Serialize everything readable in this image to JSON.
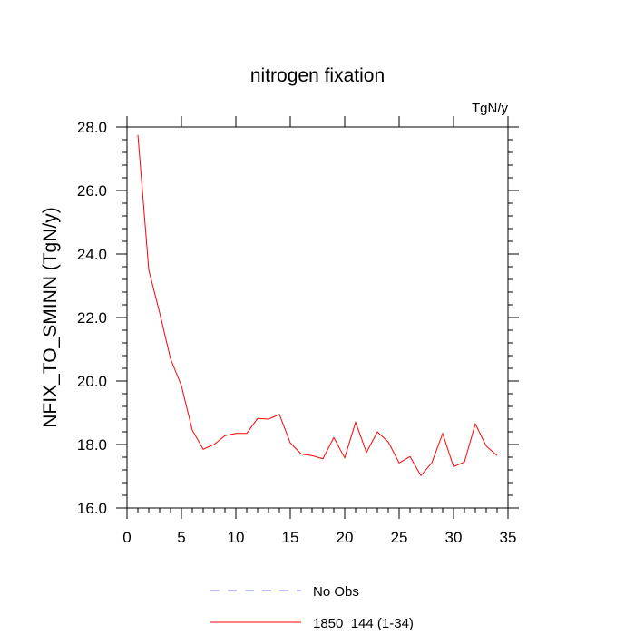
{
  "chart_data": {
    "type": "line",
    "title": "nitrogen fixation",
    "units_label": "TgN/y",
    "xlabel": "",
    "ylabel": "NFIX_TO_SMINN  (TgN/y)",
    "xlim": [
      0,
      35
    ],
    "ylim": [
      16,
      28
    ],
    "xticks": [
      0,
      5,
      10,
      15,
      20,
      25,
      30,
      35
    ],
    "xtick_labels": [
      "0",
      "5",
      "10",
      "15",
      "20",
      "25",
      "30",
      "35"
    ],
    "yticks": [
      16,
      18,
      20,
      22,
      24,
      26,
      28
    ],
    "ytick_labels": [
      "16.0",
      "18.0",
      "20.0",
      "22.0",
      "24.0",
      "26.0",
      "28.0"
    ],
    "grid": false,
    "legend_position": "bottom-center",
    "series": [
      {
        "name": "1850_144 (1-34)",
        "color": "#ff0000",
        "style": "solid",
        "x": [
          1,
          2,
          3,
          4,
          5,
          6,
          7,
          8,
          9,
          10,
          11,
          12,
          13,
          14,
          15,
          16,
          17,
          18,
          19,
          20,
          21,
          22,
          23,
          24,
          25,
          26,
          27,
          28,
          29,
          30,
          31,
          32,
          33,
          34
        ],
        "values": [
          27.75,
          23.5,
          22.15,
          20.7,
          19.85,
          18.45,
          17.85,
          18.0,
          18.28,
          18.35,
          18.35,
          18.82,
          18.8,
          18.95,
          18.05,
          17.7,
          17.65,
          17.55,
          18.22,
          17.58,
          18.7,
          17.75,
          18.4,
          18.08,
          17.42,
          17.62,
          17.02,
          17.42,
          18.35,
          17.3,
          17.45,
          18.65,
          17.95,
          17.65
        ]
      }
    ],
    "legend": [
      {
        "label": "No Obs",
        "color": "#8080ff",
        "style": "dashed"
      },
      {
        "label": "1850_144 (1-34)",
        "color": "#ff0000",
        "style": "solid"
      }
    ]
  }
}
